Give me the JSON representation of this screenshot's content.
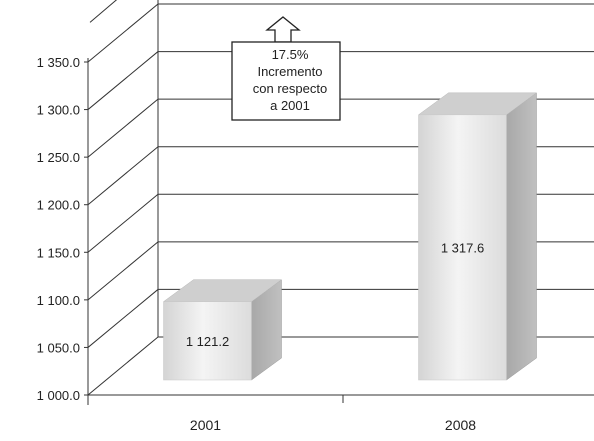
{
  "chart_data": {
    "type": "bar",
    "categories": [
      "2001",
      "2008"
    ],
    "values": [
      1121.2,
      1317.6
    ],
    "data_labels": [
      "1 121.2",
      "1 317.6"
    ],
    "ylim": [
      1000,
      1350
    ],
    "y_ticks": [
      1000,
      1050,
      1100,
      1150,
      1200,
      1250,
      1300,
      1350
    ],
    "y_tick_labels": [
      "1 000.0",
      "1 050.0",
      "1 100.0",
      "1 150.0",
      "1 200.0",
      "1 250.0",
      "1 300.0",
      "1 350.0"
    ],
    "grid": true,
    "style": "3d",
    "annotation": {
      "lines": [
        "17.5%",
        "Incremento",
        "con respecto",
        "a 2001"
      ],
      "icon": "up-arrow-icon"
    },
    "colors": {
      "bar_front": "#e6e6e6",
      "bar_side": "#b0b0b0",
      "bar_top": "#cfcfcf",
      "grid": "#333333",
      "axis": "#333333"
    }
  }
}
